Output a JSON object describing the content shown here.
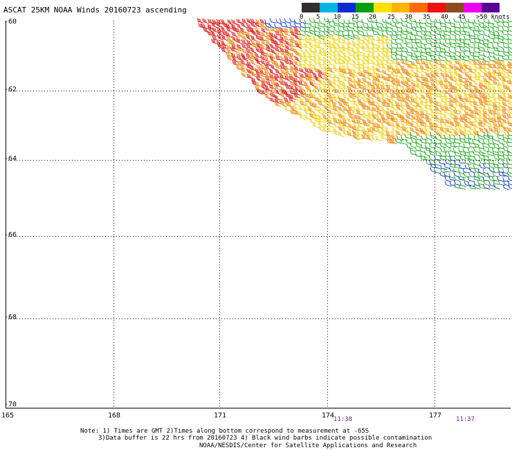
{
  "title": "ASCAT 25KM NOAA Winds 20160723 ascending",
  "legend": {
    "colors": [
      "#303030",
      "#7c7c7c",
      "#00b4e6",
      "#0a2cd2",
      "#0a9e0a",
      "#22d422",
      "#ffe000",
      "#ffb400",
      "#ff6a00",
      "#ee1010",
      "#dc2020",
      "#8c4a1e",
      "#c86c3c",
      "#ee00ee",
      "#a000c8",
      "#5a0090"
    ],
    "labels": [
      "0",
      "5",
      "10",
      "15",
      "20",
      "25",
      "30",
      "35",
      "40",
      "45",
      ">50 knots"
    ]
  },
  "lat_labels": [
    "-60",
    "-62",
    "-64",
    "-66",
    "-68",
    "-70"
  ],
  "lon_labels": [
    "165",
    "168",
    "171",
    "174",
    "177"
  ],
  "times": [
    "11:38",
    "11:37"
  ],
  "notes": {
    "line1": "Note: 1) Times are GMT 2)Times along bottom correspond to measurement at -65S",
    "line2": "3)Data buffer is 22 hrs from 20160723 4) Black wind barbs indicate possible contamination",
    "line3": "NOAA/NESDIS/Center for Satellite Applications and Research"
  },
  "barb_colors": {
    "blue": "#1a3cd8",
    "green": "#22aa22",
    "yellow": "#f2d40a",
    "orange": "#f08a10",
    "red": "#e22020"
  }
}
